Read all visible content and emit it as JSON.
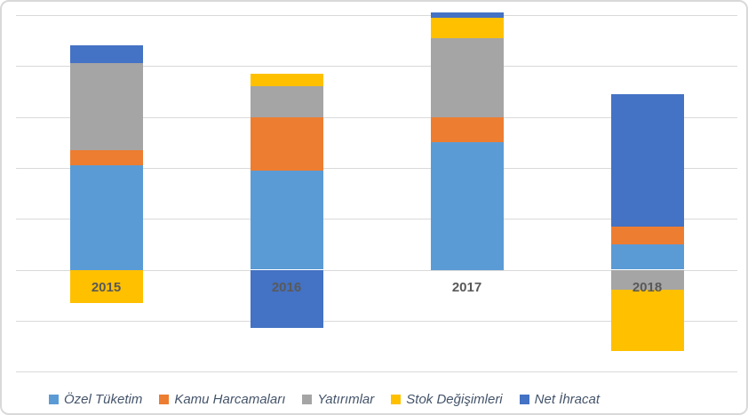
{
  "chart_style": {
    "background": "#FFFFFF",
    "border_color": "#D9D9D9",
    "gridline_color": "#D9D9D9",
    "category_label_color": "#595959",
    "legend_text_color": "#44546A"
  },
  "chart_data": {
    "type": "bar",
    "stacked": true,
    "title": "",
    "xlabel": "",
    "ylabel": "",
    "categories": [
      "2015",
      "2016",
      "2017",
      "2018"
    ],
    "series": [
      {
        "name": "Özel Tüketim",
        "color": "#5B9BD5",
        "values": [
          4.1,
          3.9,
          5.0,
          1.0
        ]
      },
      {
        "name": "Kamu Harcamaları",
        "color": "#ED7D31",
        "values": [
          0.6,
          2.1,
          1.0,
          0.7
        ]
      },
      {
        "name": "Yatırımlar",
        "color": "#A5A5A5",
        "values": [
          3.4,
          1.2,
          3.1,
          -0.8
        ]
      },
      {
        "name": "Stok Değişimleri",
        "color": "#FFC000",
        "values": [
          -1.3,
          0.5,
          0.8,
          -2.4
        ]
      },
      {
        "name": "Net İhracat",
        "color": "#4472C4",
        "values": [
          0.7,
          -2.3,
          0.2,
          5.2
        ]
      }
    ],
    "ylim": [
      -4,
      10
    ],
    "gridline_step": 2,
    "y_tick_labels_visible": false,
    "grid": true,
    "legend_position": "bottom",
    "category_labels_at_zero": true
  }
}
